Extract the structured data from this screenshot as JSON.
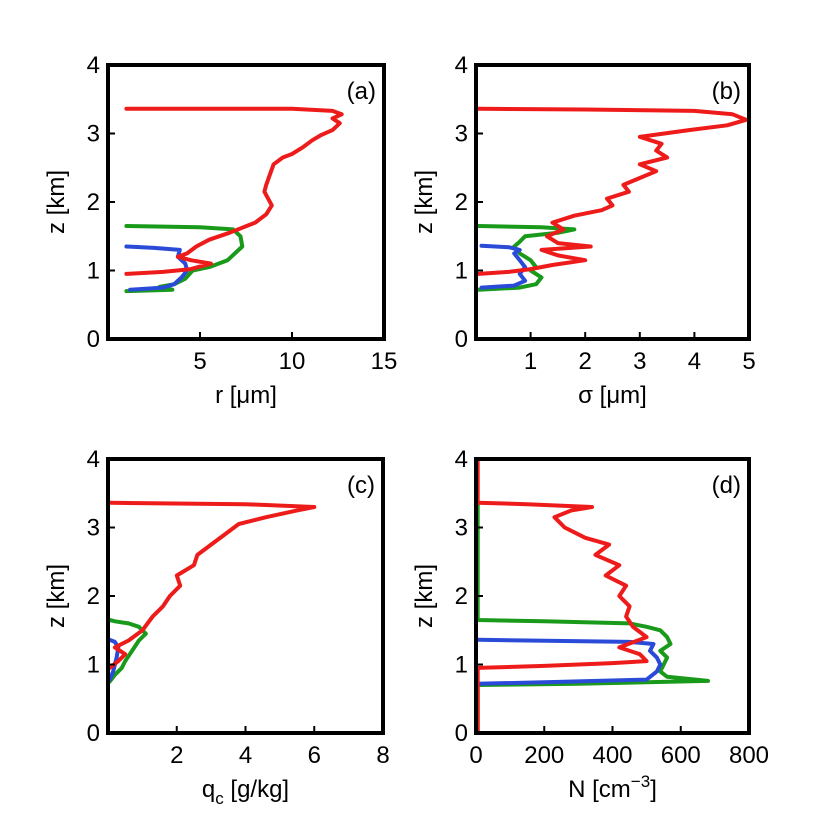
{
  "chart_data": [
    {
      "id": "a",
      "type": "line",
      "panel_label": "(a)",
      "xlabel_main": "r [",
      "xlabel_unit": "μm",
      "xlabel_end": "]",
      "ylabel": "z [km]",
      "xlim": [
        0,
        15
      ],
      "ylim": [
        0,
        4
      ],
      "xticks": [
        5,
        10,
        15
      ],
      "yticks": [
        0,
        1,
        2,
        3,
        4
      ],
      "series": [
        {
          "name": "green",
          "color": "#1a9a1a",
          "points": [
            [
              1.0,
              0.7
            ],
            [
              3.5,
              0.72
            ],
            [
              2.8,
              0.76
            ],
            [
              3.6,
              0.8
            ],
            [
              4.2,
              0.88
            ],
            [
              4.6,
              1.0
            ],
            [
              5.5,
              1.05
            ],
            [
              6.5,
              1.15
            ],
            [
              7.3,
              1.35
            ],
            [
              7.2,
              1.5
            ],
            [
              6.8,
              1.6
            ],
            [
              5.0,
              1.63
            ],
            [
              1.0,
              1.65
            ]
          ]
        },
        {
          "name": "blue",
          "color": "#2a4ad8",
          "points": [
            [
              1.2,
              0.72
            ],
            [
              3.0,
              0.75
            ],
            [
              3.6,
              0.8
            ],
            [
              4.0,
              0.9
            ],
            [
              4.3,
              1.0
            ],
            [
              4.2,
              1.1
            ],
            [
              3.8,
              1.2
            ],
            [
              3.9,
              1.3
            ],
            [
              2.5,
              1.33
            ],
            [
              1.0,
              1.35
            ]
          ]
        },
        {
          "name": "red",
          "color": "#ee1b1b",
          "points": [
            [
              1.0,
              0.95
            ],
            [
              3.0,
              0.98
            ],
            [
              4.5,
              1.02
            ],
            [
              5.6,
              1.1
            ],
            [
              4.5,
              1.15
            ],
            [
              3.8,
              1.2
            ],
            [
              4.3,
              1.25
            ],
            [
              4.8,
              1.35
            ],
            [
              5.5,
              1.45
            ],
            [
              6.6,
              1.55
            ],
            [
              8.0,
              1.7
            ],
            [
              8.6,
              1.82
            ],
            [
              8.9,
              1.95
            ],
            [
              8.7,
              2.05
            ],
            [
              8.5,
              2.15
            ],
            [
              8.6,
              2.25
            ],
            [
              8.8,
              2.4
            ],
            [
              9.0,
              2.55
            ],
            [
              9.5,
              2.65
            ],
            [
              10.0,
              2.7
            ],
            [
              10.6,
              2.8
            ],
            [
              11.1,
              2.9
            ],
            [
              11.6,
              2.98
            ],
            [
              12.2,
              3.05
            ],
            [
              12.6,
              3.15
            ],
            [
              12.2,
              3.22
            ],
            [
              12.7,
              3.28
            ],
            [
              12.2,
              3.33
            ],
            [
              10.0,
              3.36
            ],
            [
              1.0,
              3.36
            ]
          ]
        }
      ]
    },
    {
      "id": "b",
      "type": "line",
      "panel_label": "(b)",
      "xlabel_main": "σ [",
      "xlabel_unit": "μm",
      "xlabel_end": "]",
      "ylabel": "z [km]",
      "xlim": [
        0,
        5
      ],
      "ylim": [
        0,
        4
      ],
      "xticks": [
        1,
        2,
        3,
        4,
        5
      ],
      "yticks": [
        0,
        1,
        2,
        3,
        4
      ],
      "series": [
        {
          "name": "green",
          "color": "#1a9a1a",
          "points": [
            [
              0.05,
              0.72
            ],
            [
              0.8,
              0.75
            ],
            [
              1.1,
              0.8
            ],
            [
              1.2,
              0.9
            ],
            [
              1.0,
              1.0
            ],
            [
              1.1,
              1.05
            ],
            [
              1.0,
              1.15
            ],
            [
              0.8,
              1.25
            ],
            [
              0.7,
              1.35
            ],
            [
              0.8,
              1.42
            ],
            [
              0.9,
              1.5
            ],
            [
              1.5,
              1.55
            ],
            [
              1.8,
              1.6
            ],
            [
              1.2,
              1.63
            ],
            [
              0.05,
              1.65
            ]
          ]
        },
        {
          "name": "blue",
          "color": "#2a4ad8",
          "points": [
            [
              0.1,
              0.75
            ],
            [
              0.7,
              0.78
            ],
            [
              0.9,
              0.85
            ],
            [
              0.8,
              0.95
            ],
            [
              0.9,
              1.05
            ],
            [
              0.8,
              1.15
            ],
            [
              0.7,
              1.25
            ],
            [
              0.8,
              1.3
            ],
            [
              0.6,
              1.34
            ],
            [
              0.1,
              1.36
            ]
          ]
        },
        {
          "name": "red",
          "color": "#ee1b1b",
          "points": [
            [
              0.05,
              0.95
            ],
            [
              0.6,
              0.98
            ],
            [
              1.0,
              1.02
            ],
            [
              1.4,
              1.08
            ],
            [
              2.0,
              1.15
            ],
            [
              1.5,
              1.22
            ],
            [
              1.2,
              1.3
            ],
            [
              2.1,
              1.35
            ],
            [
              1.5,
              1.4
            ],
            [
              1.3,
              1.5
            ],
            [
              1.6,
              1.6
            ],
            [
              1.4,
              1.7
            ],
            [
              1.8,
              1.8
            ],
            [
              2.3,
              1.88
            ],
            [
              2.5,
              1.95
            ],
            [
              2.4,
              2.05
            ],
            [
              2.8,
              2.15
            ],
            [
              2.7,
              2.25
            ],
            [
              3.0,
              2.35
            ],
            [
              3.3,
              2.45
            ],
            [
              3.0,
              2.55
            ],
            [
              3.5,
              2.65
            ],
            [
              3.3,
              2.75
            ],
            [
              3.4,
              2.85
            ],
            [
              3.0,
              2.95
            ],
            [
              3.9,
              3.05
            ],
            [
              4.6,
              3.12
            ],
            [
              4.95,
              3.2
            ],
            [
              4.7,
              3.28
            ],
            [
              4.0,
              3.33
            ],
            [
              2.0,
              3.35
            ],
            [
              0.05,
              3.36
            ]
          ]
        }
      ]
    },
    {
      "id": "c",
      "type": "line",
      "panel_label": "(c)",
      "xlabel_main": "q",
      "xlabel_sub": "c",
      "xlabel_end": " [g/kg]",
      "ylabel": "z [km]",
      "xlim": [
        0,
        8
      ],
      "ylim": [
        0,
        4
      ],
      "xticks": [
        2,
        4,
        6,
        8
      ],
      "yticks": [
        0,
        1,
        2,
        3,
        4
      ],
      "series": [
        {
          "name": "green",
          "color": "#1a9a1a",
          "points": [
            [
              0.05,
              0.75
            ],
            [
              0.2,
              0.85
            ],
            [
              0.4,
              0.95
            ],
            [
              0.5,
              1.05
            ],
            [
              0.7,
              1.2
            ],
            [
              0.9,
              1.35
            ],
            [
              1.1,
              1.45
            ],
            [
              0.9,
              1.55
            ],
            [
              0.6,
              1.6
            ],
            [
              0.2,
              1.63
            ],
            [
              0.05,
              1.65
            ]
          ]
        },
        {
          "name": "blue",
          "color": "#2a4ad8",
          "points": [
            [
              0.05,
              0.78
            ],
            [
              0.15,
              0.9
            ],
            [
              0.2,
              1.0
            ],
            [
              0.25,
              1.1
            ],
            [
              0.3,
              1.25
            ],
            [
              0.2,
              1.33
            ],
            [
              0.05,
              1.36
            ]
          ]
        },
        {
          "name": "red",
          "color": "#ee1b1b",
          "points": [
            [
              0.05,
              0.95
            ],
            [
              0.3,
              1.05
            ],
            [
              0.5,
              1.15
            ],
            [
              0.2,
              1.25
            ],
            [
              0.6,
              1.35
            ],
            [
              1.0,
              1.5
            ],
            [
              1.3,
              1.7
            ],
            [
              1.6,
              1.85
            ],
            [
              1.8,
              2.0
            ],
            [
              2.1,
              2.15
            ],
            [
              2.0,
              2.3
            ],
            [
              2.5,
              2.45
            ],
            [
              2.6,
              2.6
            ],
            [
              3.0,
              2.75
            ],
            [
              3.4,
              2.9
            ],
            [
              3.8,
              3.05
            ],
            [
              4.6,
              3.15
            ],
            [
              5.5,
              3.25
            ],
            [
              6.0,
              3.3
            ],
            [
              4.0,
              3.34
            ],
            [
              0.05,
              3.36
            ]
          ]
        }
      ]
    },
    {
      "id": "d",
      "type": "line",
      "panel_label": "(d)",
      "xlabel_main": "N [cm",
      "xlabel_sup": "−3",
      "xlabel_end": "]",
      "ylabel": "z [km]",
      "xlim": [
        0,
        800
      ],
      "ylim": [
        0,
        4
      ],
      "xticks": [
        0,
        200,
        400,
        600,
        800
      ],
      "yticks": [
        0,
        1,
        2,
        3,
        4
      ],
      "series": [
        {
          "name": "green",
          "color": "#1a9a1a",
          "points": [
            [
              5,
              0
            ],
            [
              5,
              0.7
            ],
            [
              300,
              0.72
            ],
            [
              680,
              0.76
            ],
            [
              560,
              0.82
            ],
            [
              540,
              0.9
            ],
            [
              550,
              1.0
            ],
            [
              560,
              1.1
            ],
            [
              540,
              1.2
            ],
            [
              570,
              1.3
            ],
            [
              560,
              1.4
            ],
            [
              540,
              1.5
            ],
            [
              500,
              1.55
            ],
            [
              450,
              1.6
            ],
            [
              200,
              1.63
            ],
            [
              5,
              1.65
            ],
            [
              5,
              3.36
            ]
          ]
        },
        {
          "name": "blue",
          "color": "#2a4ad8",
          "points": [
            [
              5,
              0.72
            ],
            [
              200,
              0.74
            ],
            [
              500,
              0.78
            ],
            [
              530,
              0.9
            ],
            [
              540,
              1.0
            ],
            [
              530,
              1.1
            ],
            [
              510,
              1.2
            ],
            [
              520,
              1.3
            ],
            [
              450,
              1.33
            ],
            [
              150,
              1.35
            ],
            [
              5,
              1.36
            ]
          ]
        },
        {
          "name": "red",
          "color": "#ee1b1b",
          "points": [
            [
              5,
              0
            ],
            [
              5,
              0.95
            ],
            [
              200,
              0.98
            ],
            [
              400,
              1.02
            ],
            [
              500,
              1.05
            ],
            [
              480,
              1.15
            ],
            [
              420,
              1.25
            ],
            [
              500,
              1.4
            ],
            [
              460,
              1.55
            ],
            [
              440,
              1.7
            ],
            [
              450,
              1.85
            ],
            [
              420,
              2.0
            ],
            [
              440,
              2.15
            ],
            [
              380,
              2.3
            ],
            [
              420,
              2.45
            ],
            [
              350,
              2.6
            ],
            [
              390,
              2.75
            ],
            [
              320,
              2.85
            ],
            [
              260,
              3.0
            ],
            [
              230,
              3.15
            ],
            [
              280,
              3.25
            ],
            [
              340,
              3.3
            ],
            [
              150,
              3.34
            ],
            [
              5,
              3.36
            ],
            [
              5,
              4.0
            ]
          ]
        }
      ]
    }
  ]
}
